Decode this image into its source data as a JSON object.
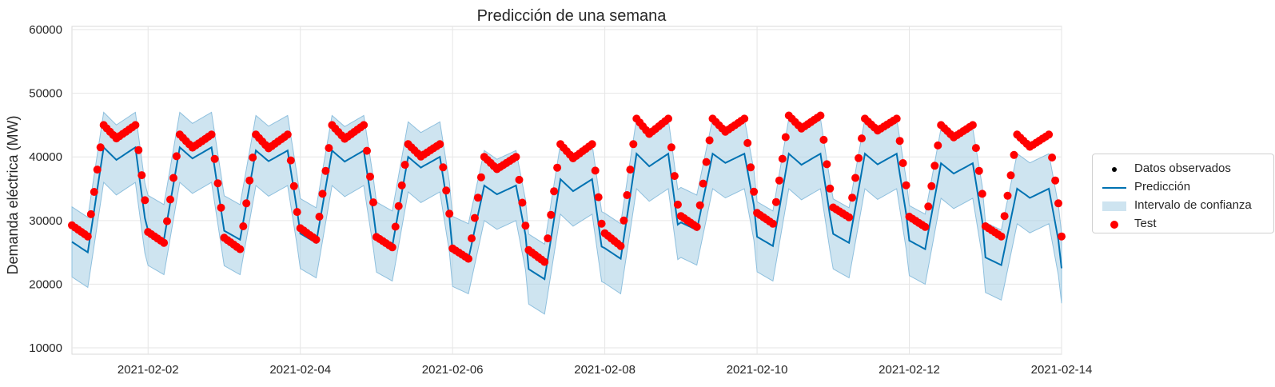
{
  "chart_data": {
    "type": "line",
    "title": "Predicción de una semana",
    "xlabel": "",
    "ylabel": "Demanda eléctrica (MW)",
    "x_range": [
      "2021-02-01",
      "2021-02-14"
    ],
    "ylim": [
      9000,
      60500
    ],
    "x_tick_labels": [
      "2021-02-02",
      "2021-02-04",
      "2021-02-06",
      "2021-02-08",
      "2021-02-10",
      "2021-02-12",
      "2021-02-14"
    ],
    "y_tick_labels": [
      "10000",
      "20000",
      "30000",
      "40000",
      "50000",
      "60000"
    ],
    "grid": true,
    "legend_position": "right",
    "colors": {
      "prediction": "#0072b2",
      "interval": "#a6cee3",
      "test": "#ff0000",
      "observed": "#000000"
    },
    "legend": [
      {
        "label": "Datos observados",
        "marker": "dot",
        "color": "#000000"
      },
      {
        "label": "Predicción",
        "marker": "line",
        "color": "#0072b2"
      },
      {
        "label": "Intervalo de confianza",
        "marker": "patch",
        "color": "#a6cee3"
      },
      {
        "label": "Test",
        "marker": "circle",
        "color": "#ff0000"
      }
    ],
    "daily_profile": {
      "days": [
        "2021-02-01",
        "2021-02-02",
        "2021-02-03",
        "2021-02-04",
        "2021-02-05",
        "2021-02-06",
        "2021-02-07",
        "2021-02-08",
        "2021-02-09",
        "2021-02-10",
        "2021-02-11",
        "2021-02-12",
        "2021-02-13"
      ],
      "test_min": [
        27500,
        26500,
        25500,
        27000,
        25800,
        24000,
        23500,
        26000,
        29000,
        29500,
        30500,
        29000,
        27500
      ],
      "test_max": [
        45000,
        43500,
        43500,
        45000,
        42000,
        40000,
        42000,
        46000,
        46000,
        46500,
        46000,
        45000,
        43500
      ],
      "pred_min": [
        25000,
        27000,
        27000,
        26500,
        26000,
        24000,
        20800,
        24000,
        28500,
        26000,
        26500,
        25500,
        23000
      ],
      "pred_max": [
        41500,
        41500,
        41000,
        41000,
        40000,
        35500,
        36500,
        40500,
        40500,
        40500,
        40500,
        39000,
        35000
      ]
    }
  }
}
